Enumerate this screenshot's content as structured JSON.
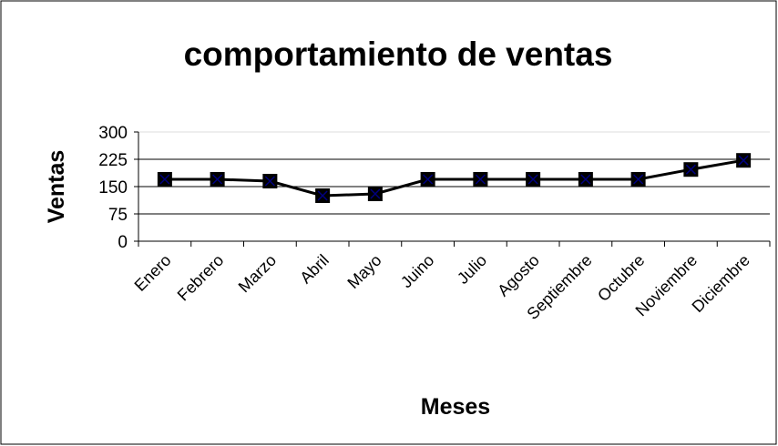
{
  "chart_data": {
    "type": "line",
    "title": "comportamiento de ventas",
    "x_label": "Meses",
    "y_label": "Ventas",
    "categories": [
      "Enero",
      "Febrero",
      "Marzo",
      "Abril",
      "Mayo",
      "Juino",
      "Julio",
      "Agosto",
      "Septiembre",
      "Octubre",
      "Noviembre",
      "Diciembre"
    ],
    "series": [
      {
        "name": "Ventas",
        "color": "#000000",
        "values": [
          170,
          170,
          165,
          125,
          130,
          170,
          170,
          170,
          170,
          170,
          197,
          222
        ]
      }
    ],
    "ylim": [
      0,
      300
    ],
    "yticks": [
      0,
      75,
      150,
      225,
      300
    ],
    "grid": true
  }
}
